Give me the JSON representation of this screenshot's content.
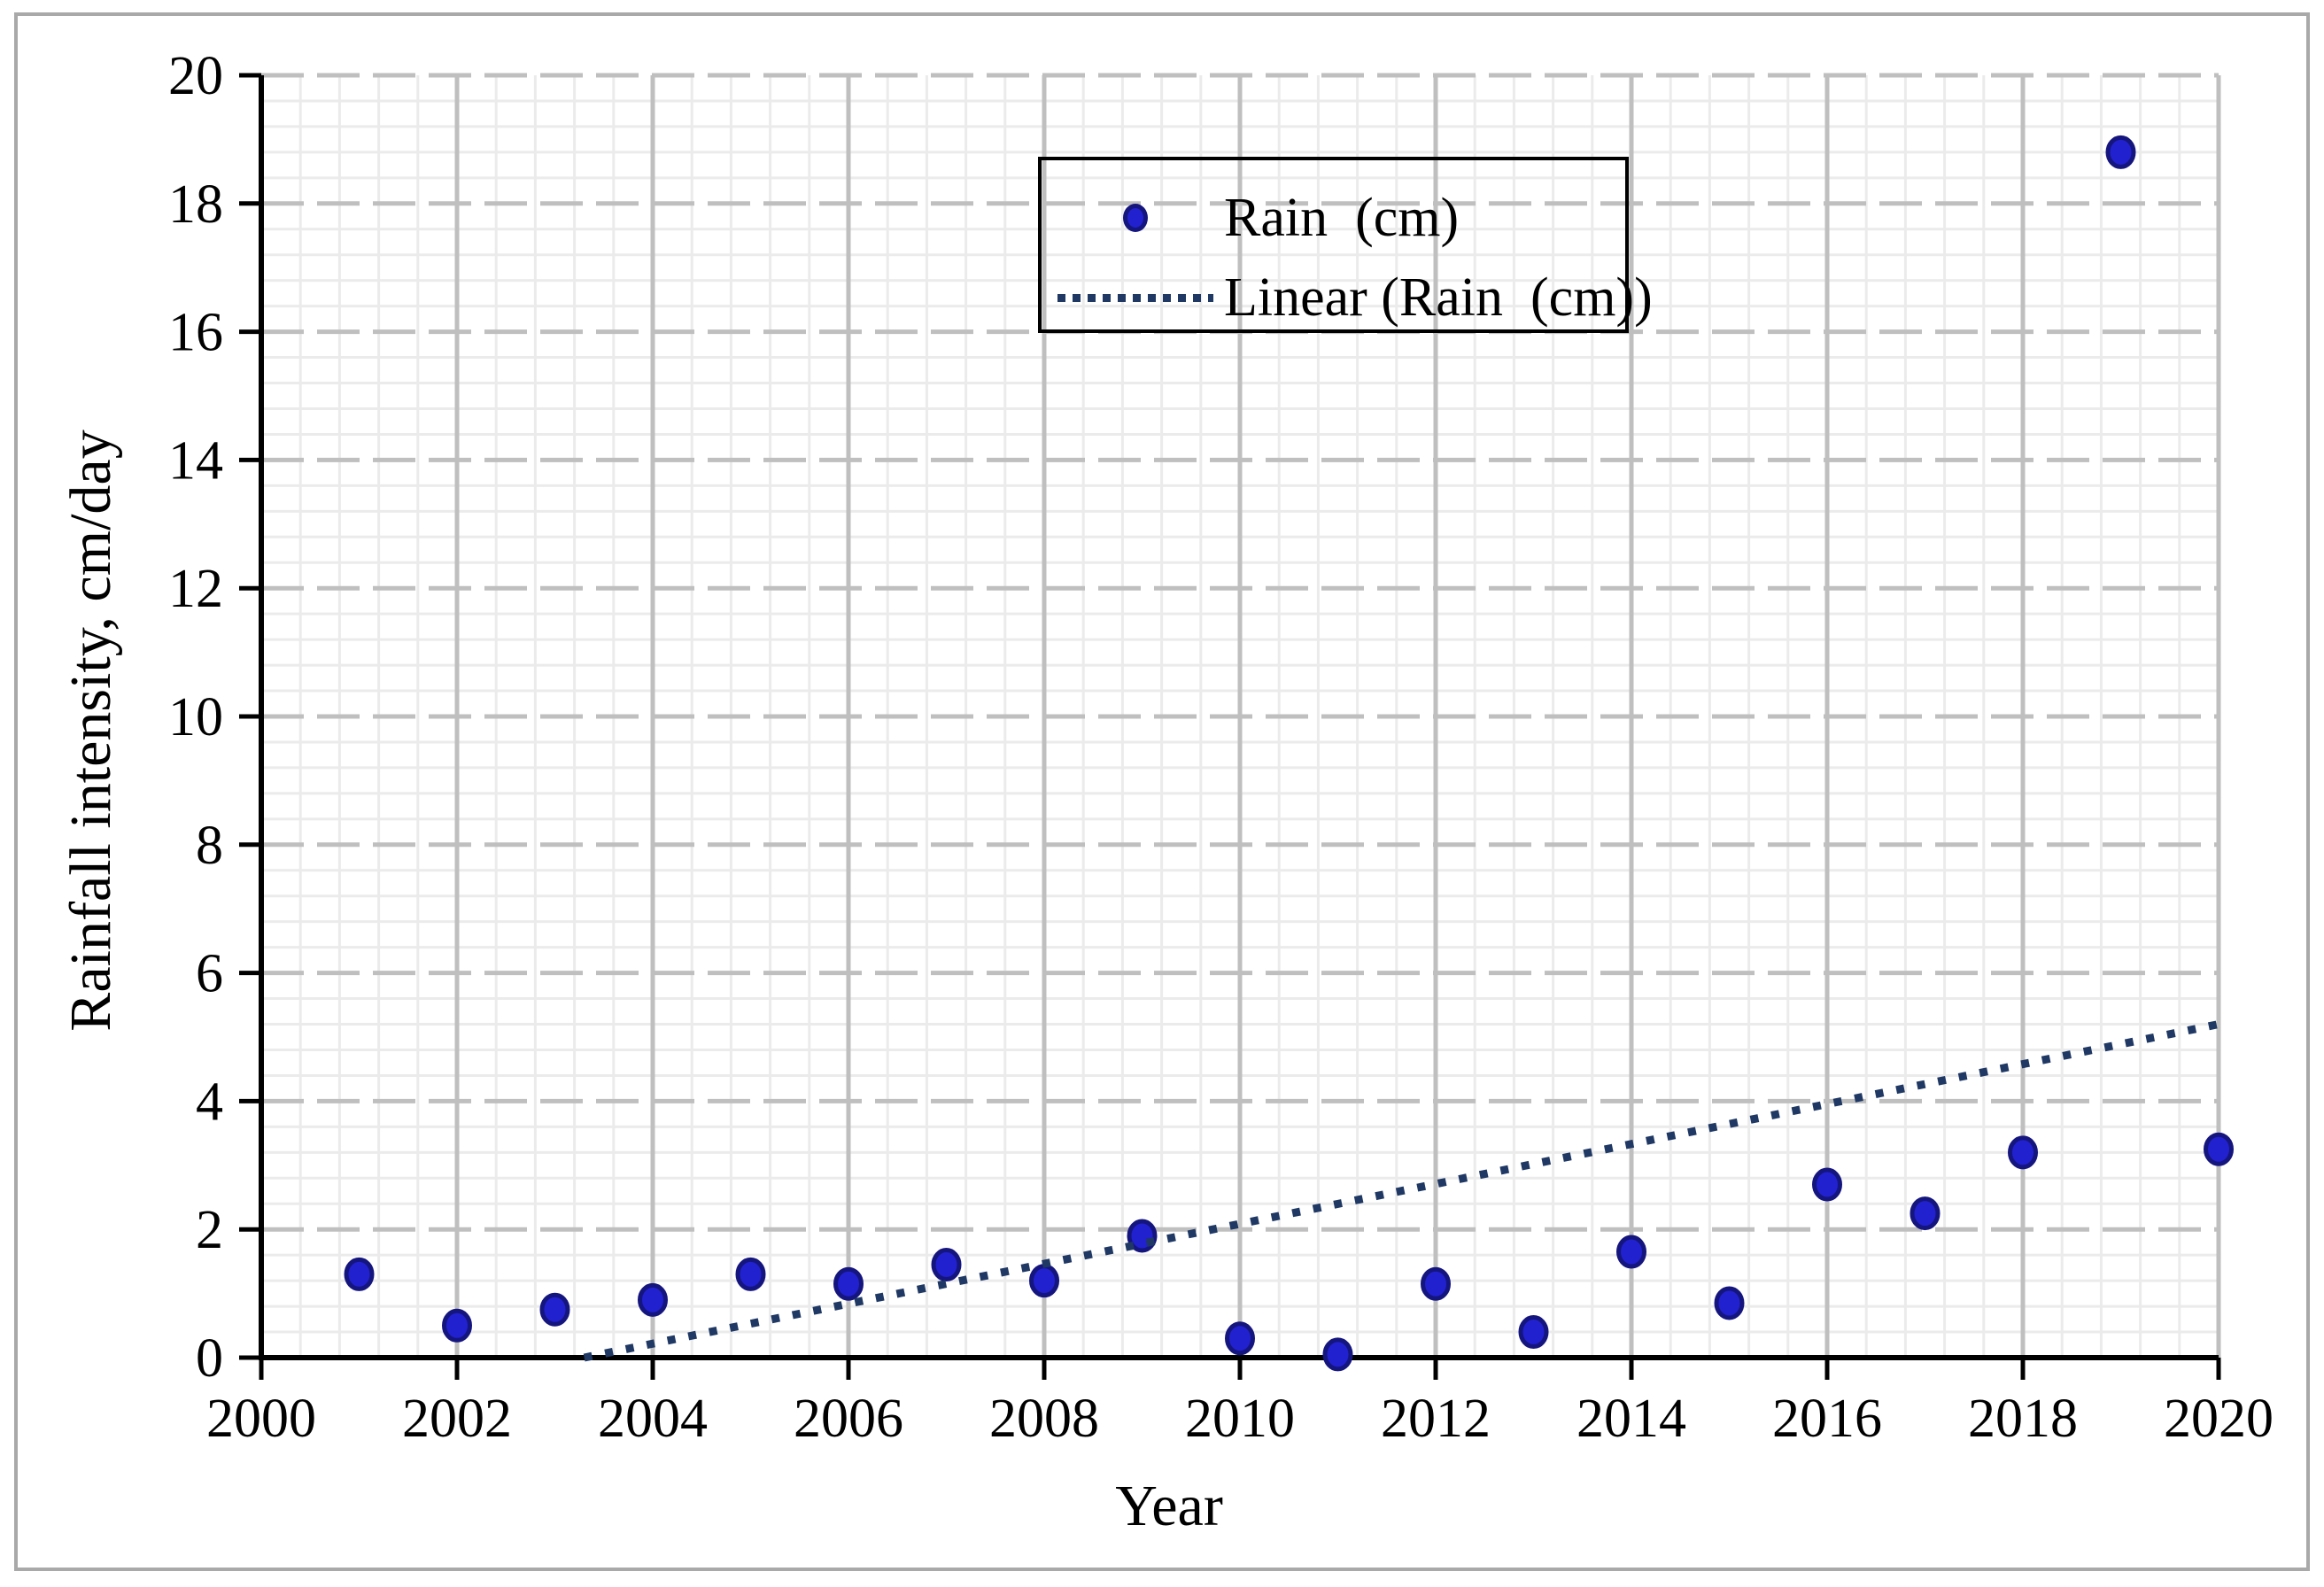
{
  "figure": {
    "background_color": "#FFFFFF",
    "border_color": "#A9A9A9"
  },
  "chart_data": {
    "type": "scatter",
    "title": "",
    "xlabel": "Year",
    "ylabel": "Rainfall intensity, cm/day",
    "x_range": [
      2000,
      2020
    ],
    "y_range": [
      0,
      20
    ],
    "x_major_unit": 2,
    "x_minor_unit": 0.4,
    "y_major_unit": 2,
    "y_minor_unit": 0.4,
    "grid": {
      "major_on": true,
      "minor_on": true,
      "major_color": "#BFBFBF",
      "minor_color": "#EBEBEB"
    },
    "x_tick_labels": [
      "2000",
      "2002",
      "2004",
      "2006",
      "2008",
      "2010",
      "2012",
      "2014",
      "2016",
      "2018",
      "2020"
    ],
    "y_tick_labels": [
      "0",
      "2",
      "4",
      "6",
      "8",
      "10",
      "12",
      "14",
      "16",
      "18",
      "20"
    ],
    "x_tick_values": [
      2000,
      2002,
      2004,
      2006,
      2008,
      2010,
      2012,
      2014,
      2016,
      2018,
      2020
    ],
    "y_tick_values": [
      0,
      2,
      4,
      6,
      8,
      10,
      12,
      14,
      16,
      18,
      20
    ],
    "series": [
      {
        "name": "Rain  (cm)",
        "kind": "scatter",
        "marker_fill": "#2121D0",
        "marker_edge": "#15157E",
        "points": [
          [
            2001,
            1.3
          ],
          [
            2002,
            0.5
          ],
          [
            2003,
            0.75
          ],
          [
            2004,
            0.9
          ],
          [
            2005,
            1.3
          ],
          [
            2006,
            1.15
          ],
          [
            2007,
            1.45
          ],
          [
            2008,
            1.2
          ],
          [
            2009,
            1.9
          ],
          [
            2010,
            0.3
          ],
          [
            2011,
            0.05
          ],
          [
            2012,
            1.15
          ],
          [
            2013,
            0.4
          ],
          [
            2014,
            1.65
          ],
          [
            2015,
            0.85
          ],
          [
            2016,
            2.7
          ],
          [
            2017,
            2.25
          ],
          [
            2018,
            3.2
          ],
          [
            2019,
            18.8
          ],
          [
            2020,
            3.25
          ]
        ]
      },
      {
        "name": "Linear (Rain  (cm))",
        "kind": "trendline",
        "line_color": "#1F3864",
        "start": [
          2003.3,
          0.0
        ],
        "end": [
          2020,
          5.2
        ]
      }
    ],
    "legend": {
      "position": "top-center",
      "border_color": "#000000",
      "entries": [
        "Rain  (cm)",
        "Linear (Rain  (cm))"
      ]
    }
  }
}
